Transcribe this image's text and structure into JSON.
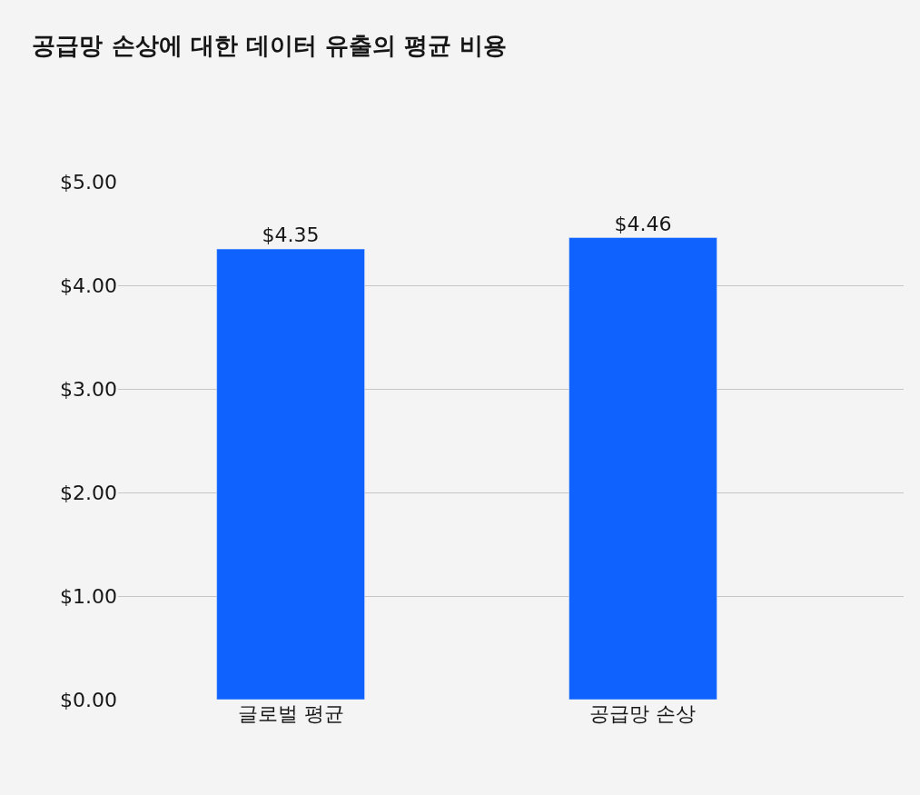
{
  "chart_data": {
    "type": "bar",
    "title": "공급망 손상에 대한 데이터 유출의 평균 비용",
    "categories": [
      "글로벌 평균",
      "공급망 손상"
    ],
    "values": [
      4.35,
      4.46
    ],
    "color": "#0f62fe",
    "value_labels": [
      "$4.35",
      "$4.46"
    ],
    "ylim": [
      0,
      5
    ],
    "yticks": [
      {
        "value": 0,
        "label": "$0.00"
      },
      {
        "value": 1,
        "label": "$1.00"
      },
      {
        "value": 2,
        "label": "$2.00"
      },
      {
        "value": 3,
        "label": "$3.00"
      },
      {
        "value": 4,
        "label": "$4.00"
      },
      {
        "value": 5,
        "label": "$5.00"
      }
    ],
    "grid": "y",
    "legend": false
  }
}
